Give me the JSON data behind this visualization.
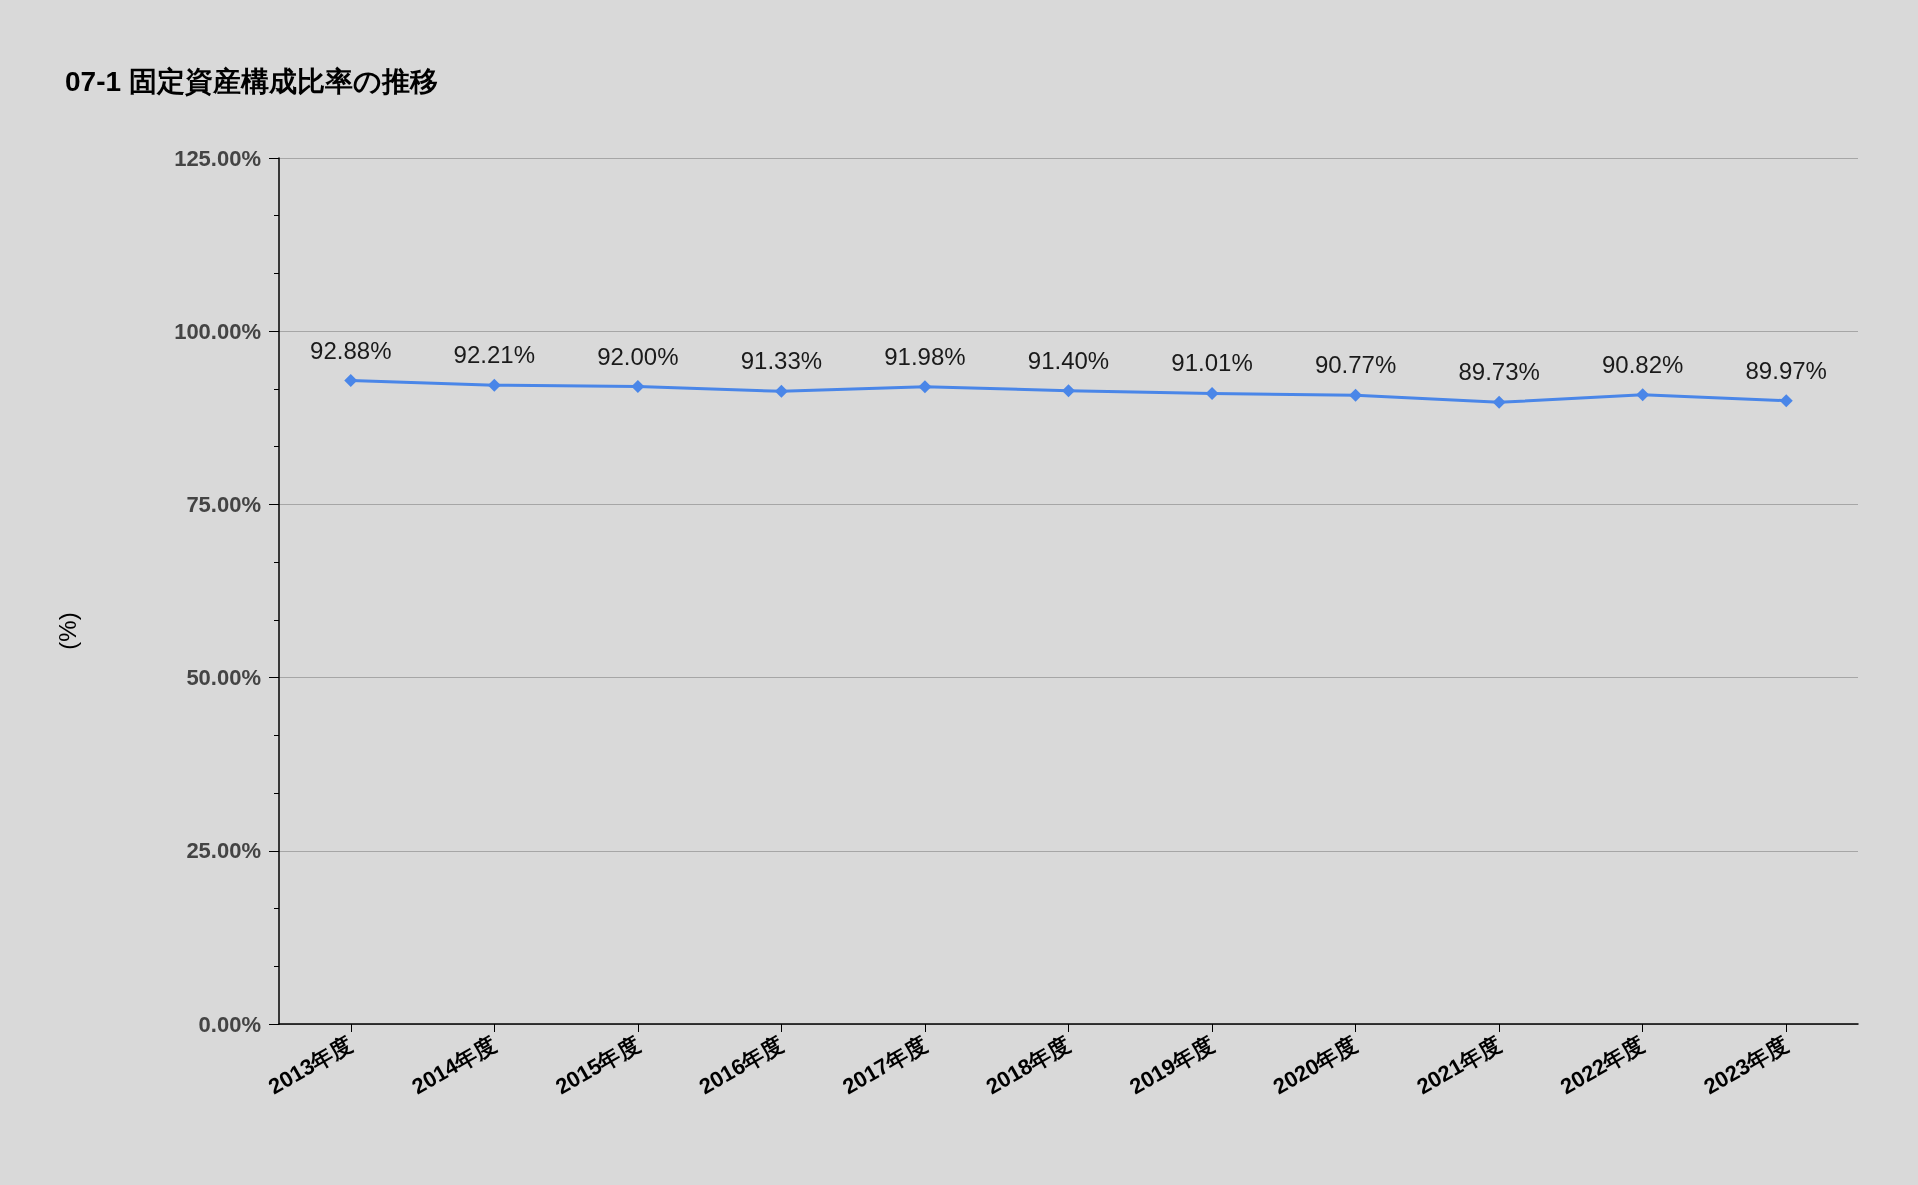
{
  "chart_data": {
    "type": "line",
    "title": "07-1 固定資産構成比率の推移",
    "ylabel": "(%)",
    "categories": [
      "2013年度",
      "2014年度",
      "2015年度",
      "2016年度",
      "2017年度",
      "2018年度",
      "2019年度",
      "2020年度",
      "2021年度",
      "2022年度",
      "2023年度"
    ],
    "series": [
      {
        "color": "#4a86e8",
        "values": [
          92.88,
          92.21,
          92.0,
          91.33,
          91.98,
          91.4,
          91.01,
          90.77,
          89.73,
          90.82,
          89.97
        ],
        "value_labels": [
          "92.88%",
          "92.21%",
          "92.00%",
          "91.33%",
          "91.98%",
          "91.40%",
          "91.01%",
          "90.77%",
          "89.73%",
          "90.82%",
          "89.97%"
        ]
      }
    ],
    "ylim": [
      0,
      125
    ],
    "yticks": [
      {
        "value": 0,
        "label": "0.00%"
      },
      {
        "value": 25,
        "label": "25.00%"
      },
      {
        "value": 50,
        "label": "50.00%"
      },
      {
        "value": 75,
        "label": "75.00%"
      },
      {
        "value": 100,
        "label": "100.00%"
      },
      {
        "value": 125,
        "label": "125.00%"
      }
    ],
    "grid": "y",
    "marker": "diamond",
    "line_style": "solid"
  }
}
